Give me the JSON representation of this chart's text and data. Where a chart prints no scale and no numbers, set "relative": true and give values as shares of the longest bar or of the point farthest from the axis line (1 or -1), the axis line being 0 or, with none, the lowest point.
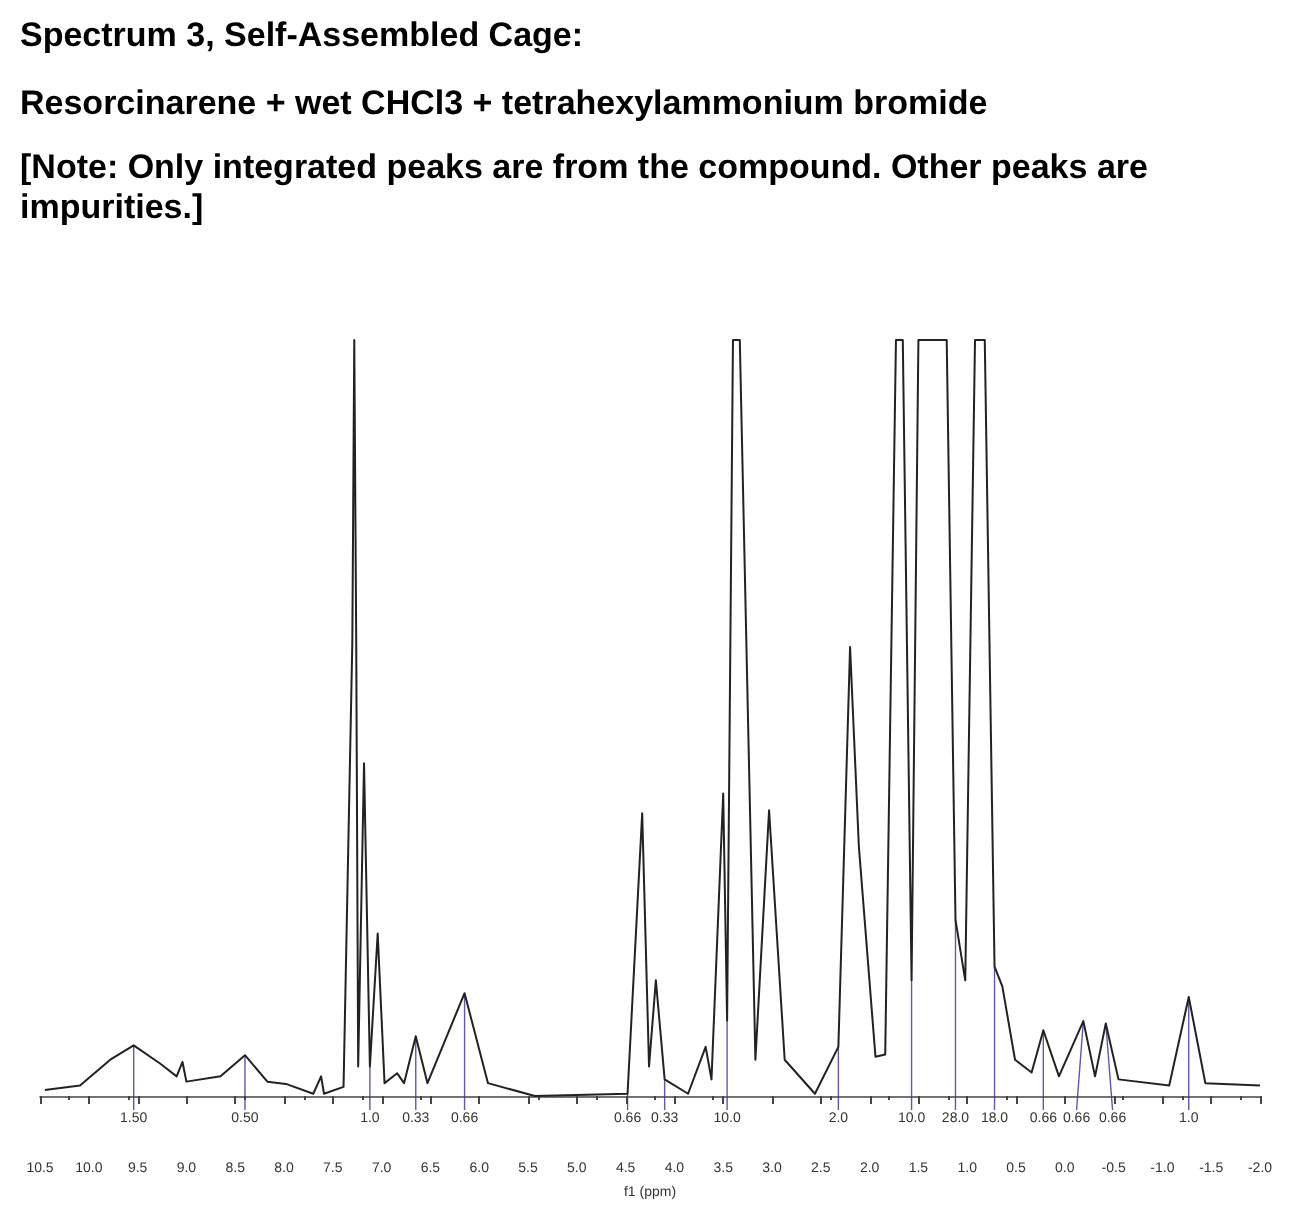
{
  "chart_data": {
    "type": "line",
    "relative": true,
    "title": "Spectrum 3, Self-Assembled Cage:",
    "subtitle": "Resorcinarene + wet CHCl3 + tetrahexylammonium bromide",
    "xlabel": "f1 (ppm)",
    "xlim": [
      10.5,
      -2.0
    ],
    "xticks": [
      10.5,
      {
        "value": 10,
        "label": "10.0"
      },
      9.5,
      {
        "value": 9,
        "label": "9.0"
      },
      8.5,
      {
        "value": 8,
        "label": "8.0"
      },
      7.5,
      {
        "value": 7,
        "label": "7.0"
      },
      6.5,
      {
        "value": 6,
        "label": "6.0"
      },
      5.5,
      {
        "value": 5,
        "label": "5.0"
      },
      4.5,
      {
        "value": 4,
        "label": "4.0"
      },
      3.5,
      {
        "value": 3,
        "label": "3.0"
      },
      2.5,
      {
        "value": 2,
        "label": "2.0"
      },
      1.5,
      {
        "value": 1,
        "label": "1.0"
      },
      0.5,
      {
        "value": 0,
        "label": "0.0"
      },
      -0.5,
      {
        "value": -1,
        "label": "-1.0"
      },
      -1.5,
      {
        "value": -2,
        "label": "-2.0"
      }
    ],
    "grid": false,
    "marker": "none",
    "line_style": "solid",
    "annotations": [
      "[Note: Only integrated peaks are from the compound. Other peaks are impurities.]",
      {
        "text": "1.50",
        "x": 9.54,
        "y": 0.067
      },
      {
        "text": "0.50",
        "x": 8.4,
        "y": 0.054
      },
      {
        "text": "1.0",
        "x": 7.12,
        "y": 0.039
      },
      {
        "text": "0.33",
        "x": 6.65,
        "y": 0.079
      },
      {
        "text": "0.66",
        "x": 6.15,
        "y": 0.136
      },
      {
        "text": "0.66",
        "x": 4.48,
        "y": 0.003
      },
      {
        "text": "0.33",
        "x": 4.1,
        "y": 0.022
      },
      {
        "text": "10.0",
        "x": 3.46,
        "y": 0.1
      },
      {
        "text": "2.0",
        "x": 2.32,
        "y": 0.065
      },
      {
        "text": "10.0",
        "x": 1.57,
        "y": 0.153
      },
      {
        "text": "28.0",
        "x": 1.12,
        "y": 0.233
      },
      {
        "text": "18.0",
        "x": 0.72,
        "y": 0.171
      },
      {
        "text": "0.66",
        "x": 0.22,
        "y": 0.087
      },
      {
        "text": "0.66",
        "x": -0.19,
        "y": 0.099
      },
      {
        "text": "0.66",
        "x": -0.42,
        "y": 0.096
      },
      {
        "text": "1.0",
        "x": -1.27,
        "y": 0.131
      }
    ],
    "series": [
      {
        "color": "#222222",
        "x": [
          10.45,
          10.09,
          9.78,
          9.54,
          9.27,
          9.1,
          9.04,
          9.0,
          8.65,
          8.4,
          8.17,
          7.98,
          7.7,
          7.62,
          7.59,
          7.39,
          7.3,
          7.28,
          7.26,
          7.24,
          7.18,
          7.12,
          7.04,
          6.97,
          6.84,
          6.77,
          6.65,
          6.53,
          6.15,
          5.91,
          5.43,
          4.48,
          4.33,
          4.26,
          4.19,
          4.1,
          3.86,
          3.68,
          3.62,
          3.5,
          3.46,
          3.4,
          3.33,
          3.17,
          3.03,
          2.87,
          2.56,
          2.32,
          2.2,
          2.11,
          1.94,
          1.84,
          1.73,
          1.66,
          1.57,
          1.5,
          1.36,
          1.24,
          1.21,
          1.12,
          1.02,
          0.92,
          0.82,
          0.72,
          0.64,
          0.51,
          0.34,
          0.22,
          0.06,
          -0.19,
          -0.31,
          -0.42,
          -0.55,
          -1.07,
          -1.27,
          -1.44,
          -2.0
        ],
        "values": [
          0.008,
          0.014,
          0.048,
          0.067,
          0.043,
          0.026,
          0.045,
          0.019,
          0.026,
          0.054,
          0.019,
          0.016,
          0.003,
          0.026,
          0.003,
          0.012,
          0.6,
          1,
          0.6,
          0.039,
          0.44,
          0.039,
          0.215,
          0.017,
          0.03,
          0.017,
          0.079,
          0.017,
          0.136,
          0.017,
          0,
          0.003,
          0.374,
          0.039,
          0.153,
          0.022,
          0.003,
          0.065,
          0.022,
          0.4,
          0.1,
          1,
          1,
          0.048,
          0.378,
          0.048,
          0.003,
          0.065,
          0.594,
          0.33,
          0.052,
          0.055,
          1,
          1,
          0.153,
          1,
          1,
          1,
          1,
          0.233,
          0.153,
          1,
          1,
          0.171,
          0.145,
          0.048,
          0.031,
          0.087,
          0.026,
          0.099,
          0.026,
          0.096,
          0.022,
          0.014,
          0.131,
          0.017,
          0.014
        ]
      }
    ]
  }
}
